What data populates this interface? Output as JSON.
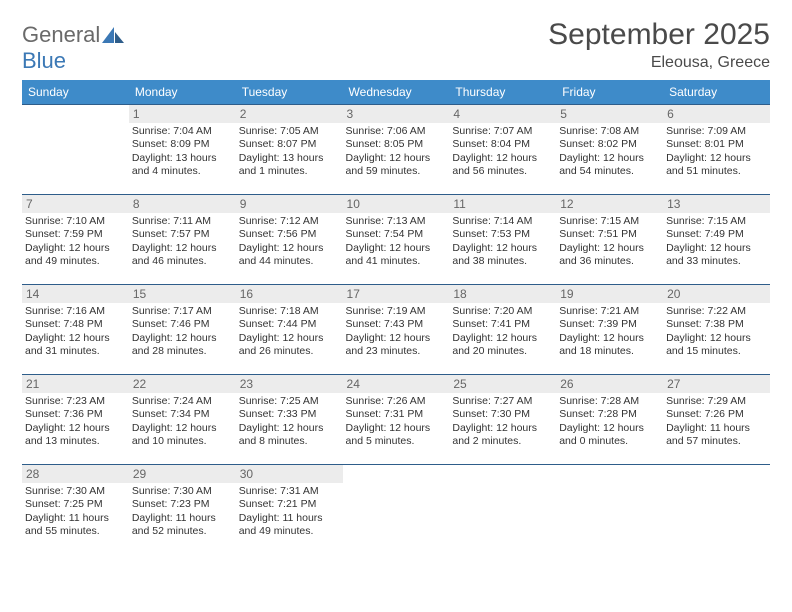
{
  "logo": {
    "text1": "General",
    "text2": "Blue"
  },
  "header": {
    "month": "September 2025",
    "location": "Eleousa, Greece"
  },
  "columns": [
    "Sunday",
    "Monday",
    "Tuesday",
    "Wednesday",
    "Thursday",
    "Friday",
    "Saturday"
  ],
  "colors": {
    "header_bg": "#3e8bc9",
    "header_text": "#ffffff",
    "row_border": "#2e5d8a",
    "daynum_bg": "#ececec",
    "daynum_text": "#666666",
    "body_text": "#333333",
    "logo_gray": "#6a6a6a",
    "logo_blue": "#3b78b5"
  },
  "weeks": [
    [
      {
        "day": "",
        "sunrise": "",
        "sunset": "",
        "daylight": ""
      },
      {
        "day": "1",
        "sunrise": "Sunrise: 7:04 AM",
        "sunset": "Sunset: 8:09 PM",
        "daylight": "Daylight: 13 hours and 4 minutes."
      },
      {
        "day": "2",
        "sunrise": "Sunrise: 7:05 AM",
        "sunset": "Sunset: 8:07 PM",
        "daylight": "Daylight: 13 hours and 1 minutes."
      },
      {
        "day": "3",
        "sunrise": "Sunrise: 7:06 AM",
        "sunset": "Sunset: 8:05 PM",
        "daylight": "Daylight: 12 hours and 59 minutes."
      },
      {
        "day": "4",
        "sunrise": "Sunrise: 7:07 AM",
        "sunset": "Sunset: 8:04 PM",
        "daylight": "Daylight: 12 hours and 56 minutes."
      },
      {
        "day": "5",
        "sunrise": "Sunrise: 7:08 AM",
        "sunset": "Sunset: 8:02 PM",
        "daylight": "Daylight: 12 hours and 54 minutes."
      },
      {
        "day": "6",
        "sunrise": "Sunrise: 7:09 AM",
        "sunset": "Sunset: 8:01 PM",
        "daylight": "Daylight: 12 hours and 51 minutes."
      }
    ],
    [
      {
        "day": "7",
        "sunrise": "Sunrise: 7:10 AM",
        "sunset": "Sunset: 7:59 PM",
        "daylight": "Daylight: 12 hours and 49 minutes."
      },
      {
        "day": "8",
        "sunrise": "Sunrise: 7:11 AM",
        "sunset": "Sunset: 7:57 PM",
        "daylight": "Daylight: 12 hours and 46 minutes."
      },
      {
        "day": "9",
        "sunrise": "Sunrise: 7:12 AM",
        "sunset": "Sunset: 7:56 PM",
        "daylight": "Daylight: 12 hours and 44 minutes."
      },
      {
        "day": "10",
        "sunrise": "Sunrise: 7:13 AM",
        "sunset": "Sunset: 7:54 PM",
        "daylight": "Daylight: 12 hours and 41 minutes."
      },
      {
        "day": "11",
        "sunrise": "Sunrise: 7:14 AM",
        "sunset": "Sunset: 7:53 PM",
        "daylight": "Daylight: 12 hours and 38 minutes."
      },
      {
        "day": "12",
        "sunrise": "Sunrise: 7:15 AM",
        "sunset": "Sunset: 7:51 PM",
        "daylight": "Daylight: 12 hours and 36 minutes."
      },
      {
        "day": "13",
        "sunrise": "Sunrise: 7:15 AM",
        "sunset": "Sunset: 7:49 PM",
        "daylight": "Daylight: 12 hours and 33 minutes."
      }
    ],
    [
      {
        "day": "14",
        "sunrise": "Sunrise: 7:16 AM",
        "sunset": "Sunset: 7:48 PM",
        "daylight": "Daylight: 12 hours and 31 minutes."
      },
      {
        "day": "15",
        "sunrise": "Sunrise: 7:17 AM",
        "sunset": "Sunset: 7:46 PM",
        "daylight": "Daylight: 12 hours and 28 minutes."
      },
      {
        "day": "16",
        "sunrise": "Sunrise: 7:18 AM",
        "sunset": "Sunset: 7:44 PM",
        "daylight": "Daylight: 12 hours and 26 minutes."
      },
      {
        "day": "17",
        "sunrise": "Sunrise: 7:19 AM",
        "sunset": "Sunset: 7:43 PM",
        "daylight": "Daylight: 12 hours and 23 minutes."
      },
      {
        "day": "18",
        "sunrise": "Sunrise: 7:20 AM",
        "sunset": "Sunset: 7:41 PM",
        "daylight": "Daylight: 12 hours and 20 minutes."
      },
      {
        "day": "19",
        "sunrise": "Sunrise: 7:21 AM",
        "sunset": "Sunset: 7:39 PM",
        "daylight": "Daylight: 12 hours and 18 minutes."
      },
      {
        "day": "20",
        "sunrise": "Sunrise: 7:22 AM",
        "sunset": "Sunset: 7:38 PM",
        "daylight": "Daylight: 12 hours and 15 minutes."
      }
    ],
    [
      {
        "day": "21",
        "sunrise": "Sunrise: 7:23 AM",
        "sunset": "Sunset: 7:36 PM",
        "daylight": "Daylight: 12 hours and 13 minutes."
      },
      {
        "day": "22",
        "sunrise": "Sunrise: 7:24 AM",
        "sunset": "Sunset: 7:34 PM",
        "daylight": "Daylight: 12 hours and 10 minutes."
      },
      {
        "day": "23",
        "sunrise": "Sunrise: 7:25 AM",
        "sunset": "Sunset: 7:33 PM",
        "daylight": "Daylight: 12 hours and 8 minutes."
      },
      {
        "day": "24",
        "sunrise": "Sunrise: 7:26 AM",
        "sunset": "Sunset: 7:31 PM",
        "daylight": "Daylight: 12 hours and 5 minutes."
      },
      {
        "day": "25",
        "sunrise": "Sunrise: 7:27 AM",
        "sunset": "Sunset: 7:30 PM",
        "daylight": "Daylight: 12 hours and 2 minutes."
      },
      {
        "day": "26",
        "sunrise": "Sunrise: 7:28 AM",
        "sunset": "Sunset: 7:28 PM",
        "daylight": "Daylight: 12 hours and 0 minutes."
      },
      {
        "day": "27",
        "sunrise": "Sunrise: 7:29 AM",
        "sunset": "Sunset: 7:26 PM",
        "daylight": "Daylight: 11 hours and 57 minutes."
      }
    ],
    [
      {
        "day": "28",
        "sunrise": "Sunrise: 7:30 AM",
        "sunset": "Sunset: 7:25 PM",
        "daylight": "Daylight: 11 hours and 55 minutes."
      },
      {
        "day": "29",
        "sunrise": "Sunrise: 7:30 AM",
        "sunset": "Sunset: 7:23 PM",
        "daylight": "Daylight: 11 hours and 52 minutes."
      },
      {
        "day": "30",
        "sunrise": "Sunrise: 7:31 AM",
        "sunset": "Sunset: 7:21 PM",
        "daylight": "Daylight: 11 hours and 49 minutes."
      },
      {
        "day": "",
        "sunrise": "",
        "sunset": "",
        "daylight": ""
      },
      {
        "day": "",
        "sunrise": "",
        "sunset": "",
        "daylight": ""
      },
      {
        "day": "",
        "sunrise": "",
        "sunset": "",
        "daylight": ""
      },
      {
        "day": "",
        "sunrise": "",
        "sunset": "",
        "daylight": ""
      }
    ]
  ]
}
